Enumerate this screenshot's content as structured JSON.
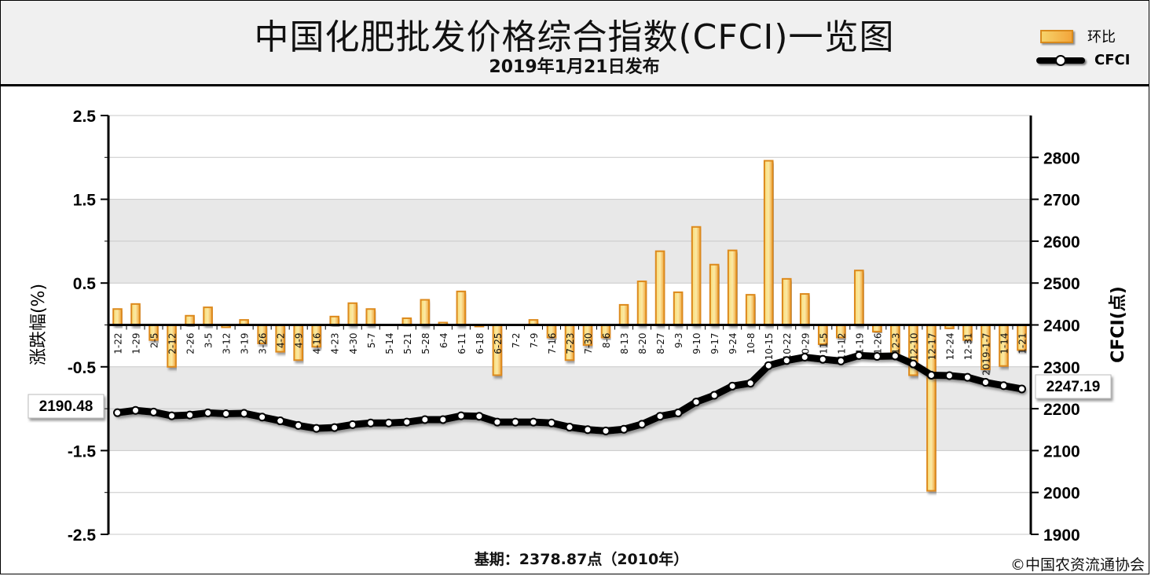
{
  "header": {
    "title": "中国化肥批发价格综合指数(CFCI)一览图",
    "subtitle": "2019年1月21日发布"
  },
  "legend": {
    "bar_label": "环比",
    "line_label": "CFCI"
  },
  "footer": {
    "base_period": "基期：2378.87点（2010年）",
    "copyright": "©中国农资流通协会"
  },
  "colors": {
    "bar_fill_light": "#f7d56b",
    "bar_fill_dark": "#f1a63a",
    "bar_border": "#dd8a1f",
    "grid_band": "#e8e8e8",
    "line": "#000000"
  },
  "chart_data": {
    "type": "bar+line",
    "left_axis": {
      "label": "涨跌幅(%)",
      "min": -2.5,
      "max": 2.5,
      "ticks": [
        "2.5",
        "1.5",
        "0.5",
        "-0.5",
        "-1.5",
        "-2.5"
      ]
    },
    "right_axis": {
      "label": "CFCI(点)",
      "min": 1900,
      "max": 2900,
      "ticks": [
        "2800",
        "2700",
        "2600",
        "2500",
        "2400",
        "2300",
        "2200",
        "2100",
        "2000",
        "1900"
      ]
    },
    "categories": [
      "1-22",
      "1-29",
      "2-5",
      "2-12",
      "2-26",
      "3-5",
      "3-12",
      "3-19",
      "3-26",
      "4-2",
      "4-9",
      "4-16",
      "4-23",
      "4-30",
      "5-7",
      "5-14",
      "5-21",
      "5-28",
      "6-4",
      "6-11",
      "6-18",
      "6-25",
      "7-2",
      "7-9",
      "7-16",
      "7-23",
      "7-30",
      "8-6",
      "8-13",
      "8-20",
      "8-27",
      "9-3",
      "9-10",
      "9-17",
      "9-24",
      "10-8",
      "10-15",
      "10-22",
      "10-29",
      "11-5",
      "11-12",
      "11-19",
      "11-26",
      "12-3",
      "12-10",
      "12-17",
      "12-24",
      "12-31",
      "2019-1-7",
      "1-14",
      "1-21"
    ],
    "series": [
      {
        "name": "环比",
        "kind": "bar",
        "axis": "left",
        "values": [
          0.19,
          0.25,
          -0.18,
          -0.5,
          0.11,
          0.21,
          -0.03,
          0.06,
          -0.22,
          -0.32,
          -0.42,
          -0.26,
          0.1,
          0.26,
          0.19,
          0.0,
          0.08,
          0.3,
          0.03,
          0.4,
          -0.02,
          -0.6,
          0.0,
          0.06,
          -0.15,
          -0.42,
          -0.24,
          -0.15,
          0.24,
          0.52,
          0.88,
          0.39,
          1.17,
          0.72,
          0.89,
          0.36,
          1.96,
          0.55,
          0.37,
          -0.23,
          -0.15,
          0.65,
          -0.08,
          -0.34,
          -0.6,
          -1.98,
          -0.04,
          -0.18,
          -0.53,
          -0.49,
          -0.3
        ]
      },
      {
        "name": "CFCI",
        "kind": "line",
        "axis": "right",
        "values": [
          2190.48,
          2196,
          2192,
          2183,
          2185,
          2190,
          2188,
          2189,
          2180,
          2171,
          2160,
          2153,
          2155,
          2162,
          2166,
          2166,
          2168,
          2174,
          2174,
          2183,
          2182,
          2168,
          2168,
          2168,
          2166,
          2156,
          2150,
          2147,
          2151,
          2163,
          2182,
          2190,
          2216,
          2232,
          2254,
          2261,
          2303,
          2315,
          2323,
          2318,
          2314,
          2327,
          2325,
          2326,
          2307,
          2280,
          2279,
          2275,
          2263,
          2255,
          2247.19
        ]
      }
    ],
    "start_label": "2190.48",
    "end_label": "2247.19"
  }
}
